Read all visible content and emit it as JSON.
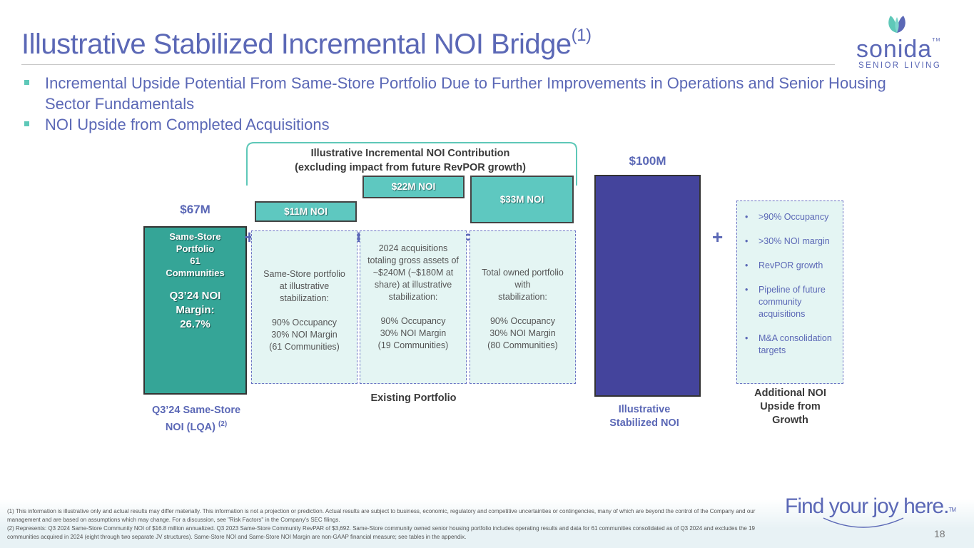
{
  "title": {
    "text": "Illustrative Stabilized Incremental NOI Bridge",
    "superscript": "(1)"
  },
  "logo": {
    "word": "sonida",
    "trademark": "TM",
    "subtitle": "SENIOR LIVING"
  },
  "bullets": [
    "Incremental Upside Potential From Same-Store Portfolio Due to Further Improvements in Operations and Senior Housing Sector Fundamentals",
    "NOI Upside from Completed Acquisitions"
  ],
  "bracket_heading": {
    "line1": "Illustrative Incremental NOI Contribution",
    "line2": "(excluding impact from future RevPOR growth)"
  },
  "chart_data": {
    "type": "bar",
    "categories": [
      "Q3’24 Same-Store NOI (LQA)",
      "Same-Store portfolio at illustrative stabilization",
      "2024 acquisitions",
      "Total owned portfolio with stabilization",
      "Illustrative Stabilized NOI"
    ],
    "values": [
      67,
      11,
      22,
      33,
      100
    ],
    "unit": "$M"
  },
  "base_bar": {
    "value_label": "$67M",
    "title_lines": [
      "Same-Store",
      "Portfolio",
      "61",
      "Communities"
    ],
    "margin_lines": [
      "Q3’24 NOI",
      "Margin:",
      "26.7%"
    ],
    "xlabel_line1": "Q3’24 Same-Store",
    "xlabel_line2": "NOI (LQA)",
    "xlabel_sup": "(2)"
  },
  "contributions": [
    {
      "label": "$11M NOI",
      "desc": [
        "Same-Store portfolio",
        "at illustrative",
        "stabilization:",
        "",
        "90% Occupancy",
        "30% NOI Margin",
        "(61 Communities)"
      ]
    },
    {
      "label": "$22M NOI",
      "desc": [
        "2024 acquisitions",
        "totaling gross assets of",
        "~$240M (~$180M at",
        "share) at illustrative",
        "stabilization:",
        "",
        "90% Occupancy",
        "30% NOI Margin",
        "(19 Communities)"
      ]
    },
    {
      "label": "$33M NOI",
      "desc": [
        "Total owned portfolio",
        "with",
        "stabilization:",
        "",
        "90% Occupancy",
        "30% NOI Margin",
        "(80 Communities)"
      ]
    }
  ],
  "operators": {
    "plus": "+",
    "equals": "="
  },
  "existing_portfolio_label": "Existing Portfolio",
  "stabilized": {
    "value_label": "$100M",
    "xlabel_line1": "Illustrative",
    "xlabel_line2": "Stabilized NOI"
  },
  "upside": {
    "items": [
      ">90% Occupancy",
      ">30% NOI margin",
      "RevPOR growth",
      "Pipeline of future community acquisitions",
      "M&A consolidation targets"
    ],
    "xlabel_lines": [
      "Additional NOI",
      "Upside from",
      "Growth"
    ]
  },
  "footnotes": [
    "(1) This information is illustrative only and actual results may differ materially. This information is not a projection or prediction. Actual results are subject to business, economic, regulatory and competitive uncertainties or contingencies, many of which are beyond the control of the Company and our management and are based on assumptions which may change. For a discussion, see \"Risk Factors\" in the Company's SEC filings.",
    "(2) Represents: Q3 2024 Same-Store Community NOI of $16.8 million annualized. Q3 2023 Same-Store Community RevPAR of $3,692. Same-Store community owned senior housing portfolio includes operating results and data for 61 communities consolidated as of Q3 2024 and excludes the 19 communities acquired in 2024 (eight through two separate JV structures). Same-Store NOI and Same-Store NOI Margin are non-GAAP financial measure; see tables in the appendix."
  ],
  "tagline": {
    "text": "Find your joy here.",
    "trademark": "TM"
  },
  "page_number": "18",
  "colors": {
    "primary": "#5b68b6",
    "teal": "#35a597",
    "light_teal": "#5ec8c0",
    "navy": "#44449c",
    "dashed_fill": "#e4f5f3"
  }
}
